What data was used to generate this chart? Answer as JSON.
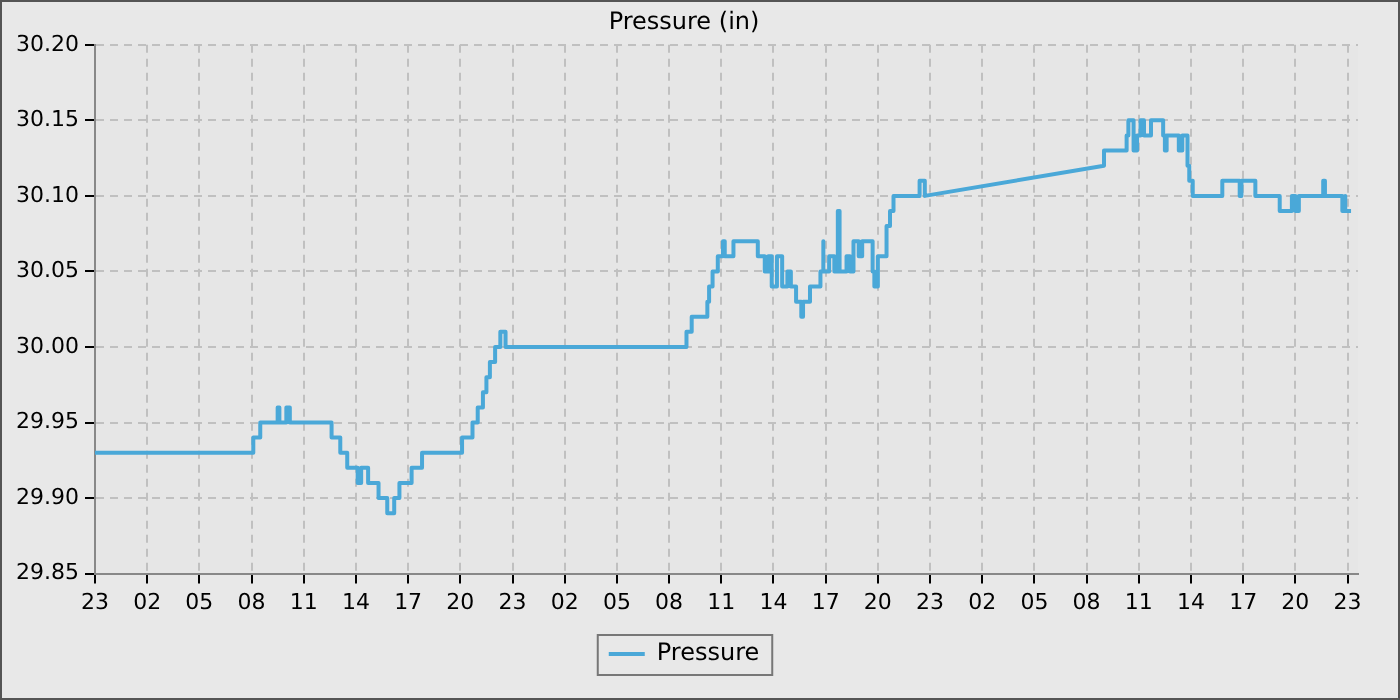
{
  "chart_data": {
    "type": "line",
    "title": "Pressure (in)",
    "legend": "bottom",
    "grid": true,
    "line_style": "solid",
    "marker": "none",
    "xlim": [
      "--01-01T23:00",
      "--01-04T23:36"
    ],
    "xticks": [
      {
        "value": "--01-01T23:00",
        "label": "23"
      },
      {
        "value": "--01-02T02:00",
        "label": "02"
      },
      {
        "value": "--01-02T05:00",
        "label": "05"
      },
      {
        "value": "--01-02T08:00",
        "label": "08"
      },
      {
        "value": "--01-02T11:00",
        "label": "11"
      },
      {
        "value": "--01-02T14:00",
        "label": "14"
      },
      {
        "value": "--01-02T17:00",
        "label": "17"
      },
      {
        "value": "--01-02T20:00",
        "label": "20"
      },
      {
        "value": "--01-02T23:00",
        "label": "23"
      },
      {
        "value": "--01-03T02:00",
        "label": "02"
      },
      {
        "value": "--01-03T05:00",
        "label": "05"
      },
      {
        "value": "--01-03T08:00",
        "label": "08"
      },
      {
        "value": "--01-03T11:00",
        "label": "11"
      },
      {
        "value": "--01-03T14:00",
        "label": "14"
      },
      {
        "value": "--01-03T17:00",
        "label": "17"
      },
      {
        "value": "--01-03T20:00",
        "label": "20"
      },
      {
        "value": "--01-03T23:00",
        "label": "23"
      },
      {
        "value": "--01-04T02:00",
        "label": "02"
      },
      {
        "value": "--01-04T05:00",
        "label": "05"
      },
      {
        "value": "--01-04T08:00",
        "label": "08"
      },
      {
        "value": "--01-04T11:00",
        "label": "11"
      },
      {
        "value": "--01-04T14:00",
        "label": "14"
      },
      {
        "value": "--01-04T17:00",
        "label": "17"
      },
      {
        "value": "--01-04T20:00",
        "label": "20"
      },
      {
        "value": "--01-04T23:00",
        "label": "23"
      }
    ],
    "ylim": [
      29.85,
      30.2
    ],
    "yticks": [
      29.85,
      {
        "value": 29.9,
        "label": "29.90"
      },
      29.95,
      {
        "value": 30.0,
        "label": "30.00"
      },
      30.05,
      {
        "value": 30.1,
        "label": "30.10"
      },
      30.15,
      {
        "value": 30.2,
        "label": "30.20"
      }
    ],
    "series": [
      {
        "name": "Pressure",
        "color": "#4aa8d8",
        "x": [
          "--01-01T23:00",
          "--01-02T08:06",
          "--01-02T08:06",
          "--01-02T08:30",
          "--01-02T08:30",
          "--01-02T09:30",
          "--01-02T09:30",
          "--01-02T09:36",
          "--01-02T09:36",
          "--01-02T10:00",
          "--01-02T10:00",
          "--01-02T10:12",
          "--01-02T10:12",
          "--01-02T12:36",
          "--01-02T12:36",
          "--01-02T13:06",
          "--01-02T13:06",
          "--01-02T13:30",
          "--01-02T13:30",
          "--01-02T14:06",
          "--01-02T14:06",
          "--01-02T14:18",
          "--01-02T14:18",
          "--01-02T14:42",
          "--01-02T14:42",
          "--01-02T15:18",
          "--01-02T15:18",
          "--01-02T15:48",
          "--01-02T15:48",
          "--01-02T16:12",
          "--01-02T16:12",
          "--01-02T16:30",
          "--01-02T16:30",
          "--01-02T17:12",
          "--01-02T17:12",
          "--01-02T17:48",
          "--01-02T17:48",
          "--01-02T20:06",
          "--01-02T20:06",
          "--01-02T20:42",
          "--01-02T20:42",
          "--01-02T21:00",
          "--01-02T21:00",
          "--01-02T21:18",
          "--01-02T21:18",
          "--01-02T21:30",
          "--01-02T21:30",
          "--01-02T21:42",
          "--01-02T21:42",
          "--01-02T22:00",
          "--01-02T22:00",
          "--01-02T22:18",
          "--01-02T22:18",
          "--01-02T22:36",
          "--01-02T22:36",
          "--01-03T09:00",
          "--01-03T09:00",
          "--01-03T09:18",
          "--01-03T09:18",
          "--01-03T10:12",
          "--01-03T10:12",
          "--01-03T10:18",
          "--01-03T10:18",
          "--01-03T10:30",
          "--01-03T10:30",
          "--01-03T10:48",
          "--01-03T10:48",
          "--01-03T11:06",
          "--01-03T11:06",
          "--01-03T11:12",
          "--01-03T11:12",
          "--01-03T11:42",
          "--01-03T11:42",
          "--01-03T13:06",
          "--01-03T13:06",
          "--01-03T13:30",
          "--01-03T13:30",
          "--01-03T13:42",
          "--01-03T13:42",
          "--01-03T13:54",
          "--01-03T13:54",
          "--01-03T14:12",
          "--01-03T14:12",
          "--01-03T14:30",
          "--01-03T14:30",
          "--01-03T14:48",
          "--01-03T14:48",
          "--01-03T15:00",
          "--01-03T15:00",
          "--01-03T15:18",
          "--01-03T15:18",
          "--01-03T15:36",
          "--01-03T15:36",
          "--01-03T15:42",
          "--01-03T15:42",
          "--01-03T16:06",
          "--01-03T16:06",
          "--01-03T16:42",
          "--01-03T16:42",
          "--01-03T16:48",
          "--01-03T16:48",
          "--01-03T16:54",
          "--01-03T16:54",
          "--01-03T17:12",
          "--01-03T17:12",
          "--01-03T17:30",
          "--01-03T17:30",
          "--01-03T17:42",
          "--01-03T17:42",
          "--01-03T17:48",
          "--01-03T17:48",
          "--01-03T18:12",
          "--01-03T18:12",
          "--01-03T18:24",
          "--01-03T18:24",
          "--01-03T18:36",
          "--01-03T18:36",
          "--01-03T18:54",
          "--01-03T18:54",
          "--01-03T19:06",
          "--01-03T19:06",
          "--01-03T19:42",
          "--01-03T19:42",
          "--01-03T19:48",
          "--01-03T19:48",
          "--01-03T20:00",
          "--01-03T20:00",
          "--01-03T20:30",
          "--01-03T20:30",
          "--01-03T20:42",
          "--01-03T20:42",
          "--01-03T20:54",
          "--01-03T20:54",
          "--01-03T22:24",
          "--01-03T22:24",
          "--01-03T22:42",
          "--01-03T22:42",
          "--01-04T09:00",
          "--01-04T09:00",
          "--01-04T10:18",
          "--01-04T10:18",
          "--01-04T10:24",
          "--01-04T10:24",
          "--01-04T10:42",
          "--01-04T10:42",
          "--01-04T10:54",
          "--01-04T10:54",
          "--01-04T11:06",
          "--01-04T11:06",
          "--01-04T11:18",
          "--01-04T11:18",
          "--01-04T11:42",
          "--01-04T11:42",
          "--01-04T12:24",
          "--01-04T12:24",
          "--01-04T12:30",
          "--01-04T12:30",
          "--01-04T12:36",
          "--01-04T12:36",
          "--01-04T13:18",
          "--01-04T13:18",
          "--01-04T13:30",
          "--01-04T13:30",
          "--01-04T13:48",
          "--01-04T13:48",
          "--01-04T13:54",
          "--01-04T13:54",
          "--01-04T14:06",
          "--01-04T14:06",
          "--01-04T15:48",
          "--01-04T15:48",
          "--01-04T16:48",
          "--01-04T16:48",
          "--01-04T16:54",
          "--01-04T16:54",
          "--01-04T17:42",
          "--01-04T17:42",
          "--01-04T19:06",
          "--01-04T19:06",
          "--01-04T19:48",
          "--01-04T19:48",
          "--01-04T20:00",
          "--01-04T20:00",
          "--01-04T20:12",
          "--01-04T20:12",
          "--01-04T21:36",
          "--01-04T21:36",
          "--01-04T21:42",
          "--01-04T21:42",
          "--01-04T22:42",
          "--01-04T22:42",
          "--01-04T22:48",
          "--01-04T22:48",
          "--01-04T22:54",
          "--01-04T22:54",
          "--01-04T23:12"
        ],
        "values": [
          29.93,
          29.93,
          29.94,
          29.94,
          29.95,
          29.95,
          29.96,
          29.96,
          29.95,
          29.95,
          29.96,
          29.96,
          29.95,
          29.95,
          29.94,
          29.94,
          29.93,
          29.93,
          29.92,
          29.92,
          29.91,
          29.91,
          29.92,
          29.92,
          29.91,
          29.91,
          29.9,
          29.9,
          29.89,
          29.89,
          29.9,
          29.9,
          29.91,
          29.91,
          29.92,
          29.92,
          29.93,
          29.93,
          29.94,
          29.94,
          29.95,
          29.95,
          29.96,
          29.96,
          29.97,
          29.97,
          29.98,
          29.98,
          29.99,
          29.99,
          30.0,
          30.0,
          30.01,
          30.01,
          30.0,
          30.0,
          30.01,
          30.01,
          30.02,
          30.02,
          30.03,
          30.03,
          30.04,
          30.04,
          30.05,
          30.05,
          30.06,
          30.06,
          30.07,
          30.07,
          30.06,
          30.06,
          30.07,
          30.07,
          30.06,
          30.06,
          30.05,
          30.05,
          30.06,
          30.06,
          30.04,
          30.04,
          30.06,
          30.06,
          30.04,
          30.04,
          30.05,
          30.05,
          30.04,
          30.04,
          30.03,
          30.03,
          30.02,
          30.02,
          30.03,
          30.03,
          30.04,
          30.04,
          30.05,
          30.05,
          30.07,
          30.07,
          30.05,
          30.05,
          30.06,
          30.06,
          30.05,
          30.05,
          30.09,
          30.09,
          30.05,
          30.05,
          30.06,
          30.06,
          30.05,
          30.05,
          30.07,
          30.07,
          30.06,
          30.06,
          30.07,
          30.07,
          30.05,
          30.05,
          30.04,
          30.04,
          30.06,
          30.06,
          30.08,
          30.08,
          30.09,
          30.09,
          30.1,
          30.1,
          30.11,
          30.11,
          30.1,
          30.12,
          30.13,
          30.13,
          30.14,
          30.14,
          30.15,
          30.15,
          30.13,
          30.13,
          30.14,
          30.14,
          30.15,
          30.15,
          30.14,
          30.14,
          30.15,
          30.15,
          30.14,
          30.14,
          30.13,
          30.13,
          30.14,
          30.14,
          30.13,
          30.13,
          30.14,
          30.14,
          30.12,
          30.12,
          30.11,
          30.11,
          30.1,
          30.1,
          30.11,
          30.11,
          30.1,
          30.1,
          30.11,
          30.11,
          30.1,
          30.1,
          30.09,
          30.09,
          30.1,
          30.1,
          30.09,
          30.09,
          30.1,
          30.1,
          30.11,
          30.11,
          30.1,
          30.1,
          30.09,
          30.09,
          30.1,
          30.1,
          30.09,
          30.09
        ]
      }
    ]
  }
}
